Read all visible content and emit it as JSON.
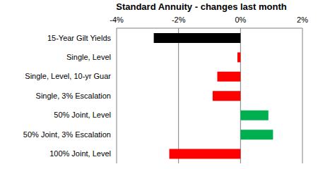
{
  "chart_data": {
    "type": "bar",
    "title": "Standard Annuity - changes last month",
    "orientation": "horizontal",
    "categories": [
      "15-Year Gilt Yields",
      "Single, Level",
      "Single, Level, 10-yr Guar",
      "Single, 3% Escalation",
      "50% Joint, Level",
      "50% Joint, 3% Escalation",
      "100% Joint, Level"
    ],
    "values": [
      -2.8,
      -0.1,
      -0.75,
      -0.9,
      0.9,
      1.05,
      -2.3
    ],
    "colors": [
      "#000000",
      "#ff0000",
      "#ff0000",
      "#ff0000",
      "#00b050",
      "#00b050",
      "#ff0000"
    ],
    "xlim": [
      -4,
      2
    ],
    "xticks": [
      {
        "value": -4,
        "label": "-4%"
      },
      {
        "value": -2,
        "label": "-2%"
      },
      {
        "value": 0,
        "label": "0%"
      },
      {
        "value": 2,
        "label": "2%"
      }
    ],
    "grid": true
  }
}
